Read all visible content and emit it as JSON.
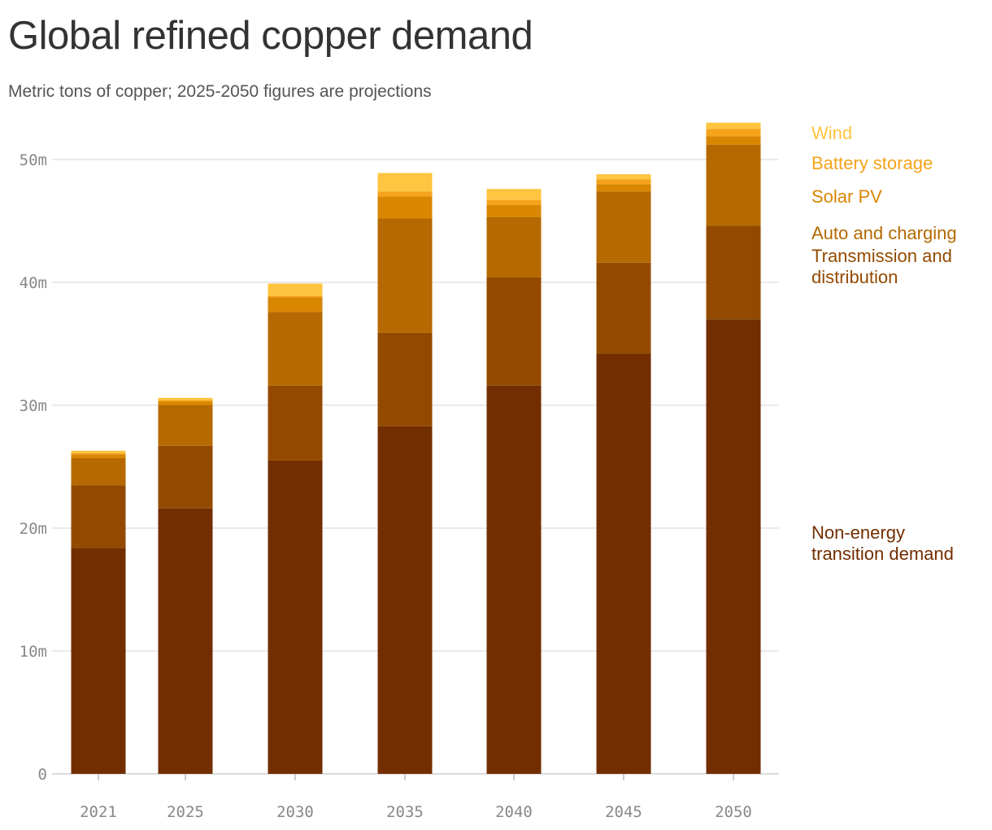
{
  "chart_data": {
    "type": "bar",
    "stacked": true,
    "title": "Global refined copper demand",
    "subtitle": "Metric tons of copper; 2025-2050 figures are projections",
    "categories": [
      "2021",
      "2025",
      "2030",
      "2035",
      "2040",
      "2045",
      "2050"
    ],
    "y_ticks": [
      0,
      10,
      20,
      30,
      40,
      50
    ],
    "y_tick_labels": [
      "0",
      "10m",
      "20m",
      "30m",
      "40m",
      "50m"
    ],
    "ylim": [
      0,
      53
    ],
    "unit": "million metric tons",
    "grid": true,
    "legend_position": "right",
    "series": [
      {
        "name": "Non-energy transition demand",
        "label_lines": [
          "Non-energy",
          "transition demand"
        ],
        "color": "#722e00",
        "values": [
          18.4,
          21.6,
          25.5,
          28.3,
          31.6,
          34.2,
          37.0
        ]
      },
      {
        "name": "Transmission and distribution",
        "label_lines": [
          "Transmission and",
          "distribution"
        ],
        "color": "#934a00",
        "values": [
          5.1,
          5.1,
          6.1,
          7.6,
          8.8,
          7.4,
          7.6
        ]
      },
      {
        "name": "Auto and charging",
        "label_lines": [
          "Auto and charging"
        ],
        "color": "#b56900",
        "values": [
          2.2,
          3.3,
          6.0,
          9.3,
          4.9,
          5.8,
          6.6
        ]
      },
      {
        "name": "Solar PV",
        "label_lines": [
          "Solar PV"
        ],
        "color": "#d98600",
        "values": [
          0.3,
          0.3,
          1.2,
          1.8,
          1.0,
          0.6,
          0.7
        ]
      },
      {
        "name": "Battery storage",
        "label_lines": [
          "Battery storage"
        ],
        "color": "#f4a31a",
        "values": [
          0.1,
          0.1,
          0.1,
          0.4,
          0.4,
          0.4,
          0.6
        ]
      },
      {
        "name": "Wind",
        "label_lines": [
          "Wind"
        ],
        "color": "#ffc440",
        "values": [
          0.2,
          0.2,
          1.0,
          1.5,
          0.9,
          0.4,
          0.5
        ]
      }
    ]
  }
}
